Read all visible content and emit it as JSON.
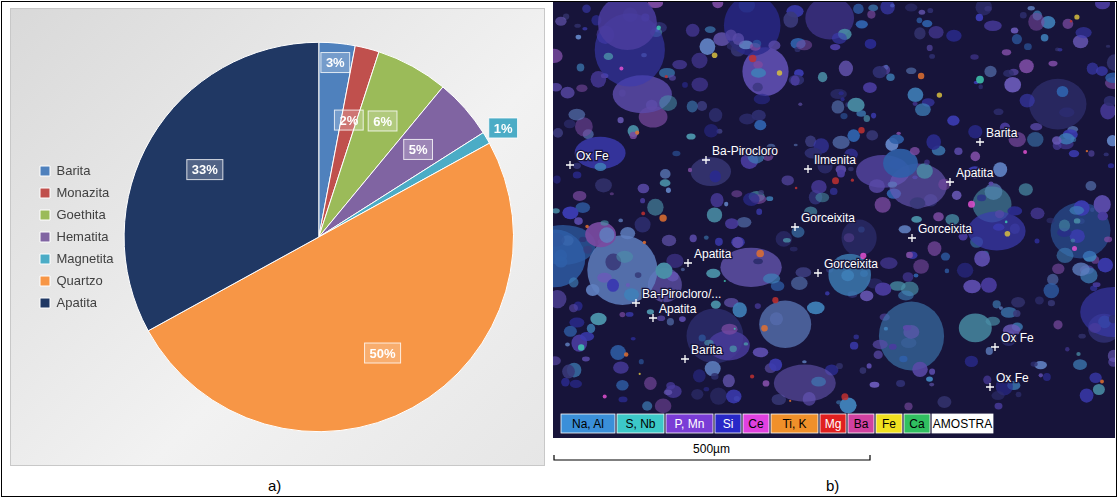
{
  "chart_data": {
    "type": "pie",
    "categories": [
      "Barita",
      "Monazita",
      "Goethita",
      "Hematita",
      "Magnetita",
      "Quartzo",
      "Apatita"
    ],
    "values": [
      3,
      2,
      6,
      5,
      1,
      50,
      33
    ],
    "value_labels": [
      "3%",
      "2%",
      "6%",
      "5%",
      "1%",
      "50%",
      "33%"
    ],
    "colors": [
      "#4f81bd",
      "#c0504d",
      "#9bbb59",
      "#8064a2",
      "#4bacc6",
      "#f79646",
      "#203864"
    ],
    "data_labels": true,
    "legend": "left"
  },
  "panel_labels": [
    "a)",
    "b)"
  ],
  "micrograph": {
    "labels": [
      "Ox Fe",
      "Ba-Pirocloro",
      "Ilmenita",
      "Barita",
      "Apatita",
      "Gorceixita",
      "Gorceixita",
      "Gorceixita",
      "Apatita",
      "Ba-Pirocloro/...",
      "Apatita",
      "Barita",
      "Ox Fe",
      "Ox Fe"
    ],
    "element_legend": [
      {
        "label": "Na, Al",
        "color": "#3a8fd9"
      },
      {
        "label": "S, Nb",
        "color": "#3cc8c8"
      },
      {
        "label": "P, Mn",
        "color": "#7a3cd6"
      },
      {
        "label": "Si",
        "color": "#2828c8"
      },
      {
        "label": "Ce",
        "color": "#e040e0"
      },
      {
        "label": "Ti, K",
        "color": "#f0902a"
      },
      {
        "label": "Mg",
        "color": "#e02020"
      },
      {
        "label": "Ba",
        "color": "#d040a0"
      },
      {
        "label": "Fe",
        "color": "#f0e020"
      },
      {
        "label": "Ca",
        "color": "#30c060"
      },
      {
        "label": "AMOSTRA",
        "color": "#ffffff"
      }
    ],
    "scale_bar": "500µm"
  }
}
